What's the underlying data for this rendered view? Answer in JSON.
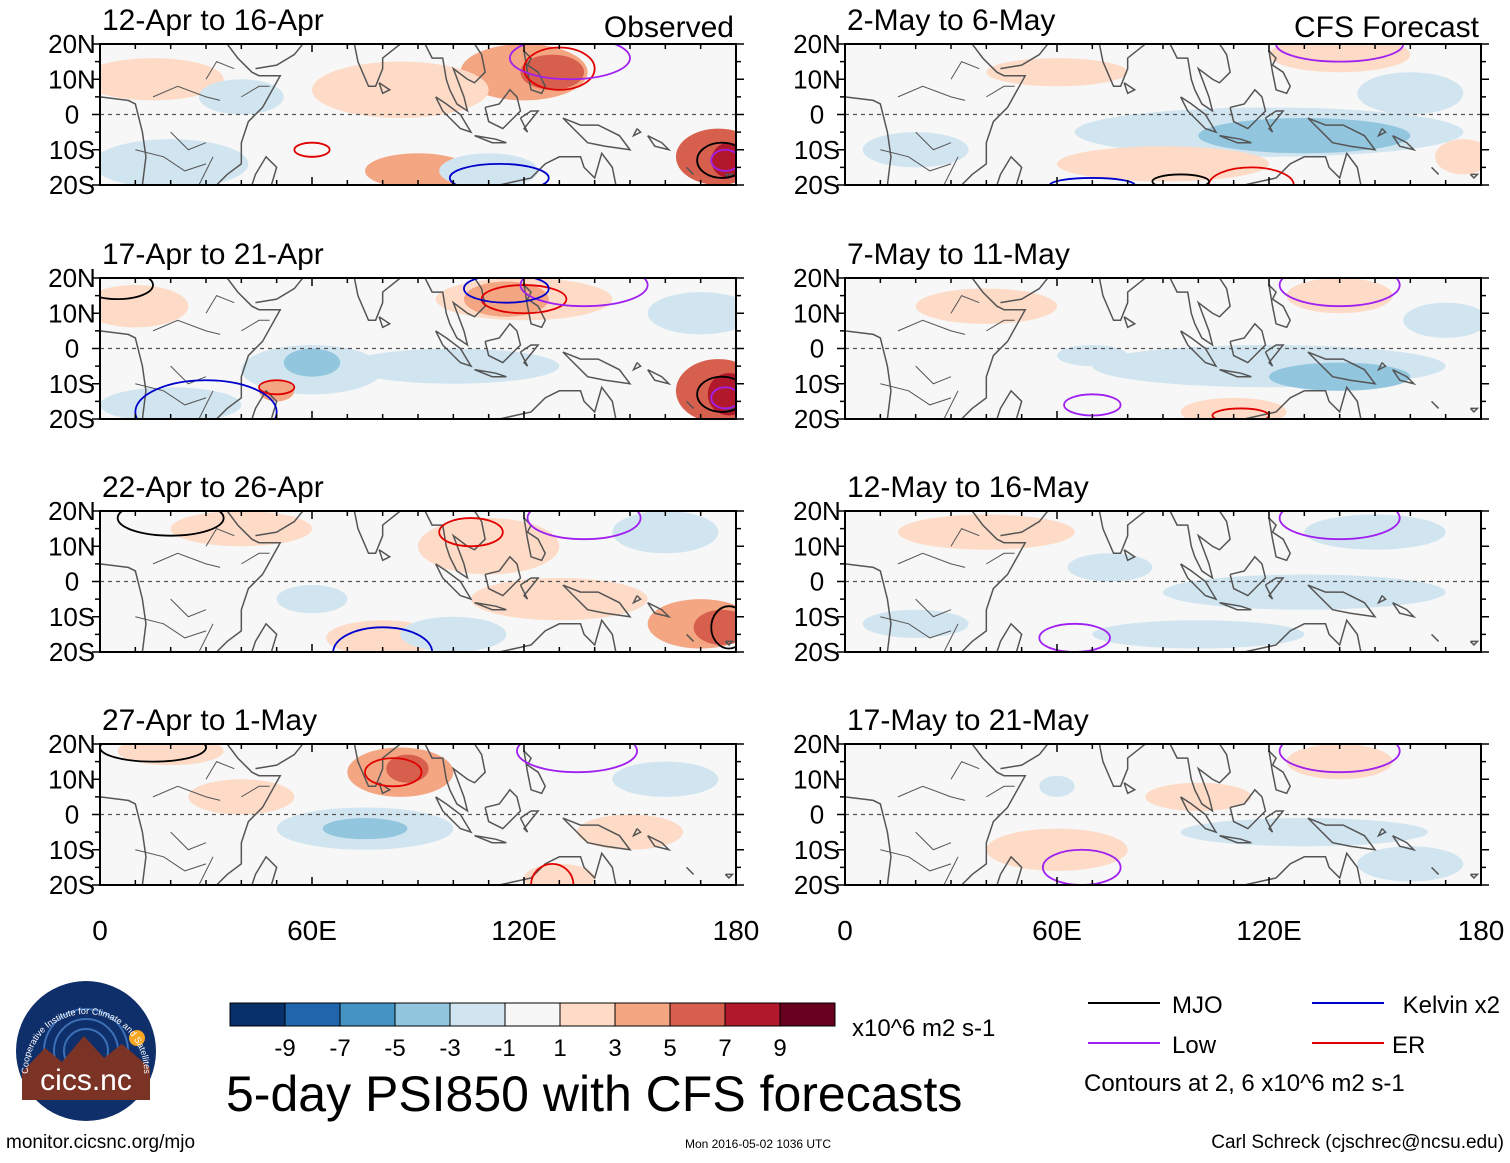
{
  "chart_data": {
    "type": "heatmap",
    "title": "5-day PSI850 with CFS forecasts",
    "variable": "PSI850 anomaly",
    "units": "x10^6 m2 s-1",
    "contour_note": "Contours at 2, 6 x10^6 m2 s-1",
    "lat_labels": [
      "20N",
      "10N",
      "0",
      "10S",
      "20S"
    ],
    "lon_labels": [
      "0",
      "60E",
      "120E",
      "180"
    ],
    "lat_range": [
      -20,
      20
    ],
    "lon_range": [
      0,
      180
    ],
    "colorbar": {
      "ticks": [
        "-9",
        "-7",
        "-5",
        "-3",
        "-1",
        "1",
        "3",
        "5",
        "7",
        "9"
      ],
      "colors": [
        "#08306b",
        "#2166ac",
        "#4393c3",
        "#92c5de",
        "#d1e5f0",
        "#f7f7f7",
        "#fddbc7",
        "#f4a582",
        "#d6604d",
        "#b2182b",
        "#67001f"
      ]
    },
    "legend": [
      {
        "label": "MJO",
        "color": "#000000"
      },
      {
        "label": "Low",
        "color": "#a020f0"
      },
      {
        "label": "Kelvin x2",
        "color": "#0000cc"
      },
      {
        "label": "ER",
        "color": "#e00000"
      }
    ],
    "columns": [
      {
        "tag": "Observed",
        "panels": [
          {
            "title": "12-Apr to 16-Apr",
            "blobs": [
              {
                "lon": 120,
                "lat": 12,
                "rx": 18,
                "ry": 8,
                "level": 2
              },
              {
                "lon": 128,
                "lat": 12,
                "rx": 9,
                "ry": 5,
                "level": 3
              },
              {
                "lon": 175,
                "lat": -12,
                "rx": 12,
                "ry": 8,
                "level": 3
              },
              {
                "lon": 178,
                "lat": -13,
                "rx": 5,
                "ry": 5,
                "level": 4
              },
              {
                "lon": 85,
                "lat": 7,
                "rx": 25,
                "ry": 8,
                "level": 1
              },
              {
                "lon": 90,
                "lat": -16,
                "rx": 15,
                "ry": 5,
                "level": 2
              },
              {
                "lon": 15,
                "lat": 10,
                "rx": 20,
                "ry": 6,
                "level": 1
              },
              {
                "lon": 20,
                "lat": -14,
                "rx": 22,
                "ry": 7,
                "level": -1
              },
              {
                "lon": 40,
                "lat": 5,
                "rx": 12,
                "ry": 5,
                "level": -1
              },
              {
                "lon": 110,
                "lat": -16,
                "rx": 14,
                "ry": 5,
                "level": -1
              }
            ],
            "contours": [
              {
                "lon": 130,
                "lat": 13,
                "rx": 10,
                "ry": 6,
                "kind": "er"
              },
              {
                "lon": 133,
                "lat": 16,
                "rx": 17,
                "ry": 6,
                "kind": "low"
              },
              {
                "lon": 60,
                "lat": -10,
                "rx": 5,
                "ry": 2,
                "kind": "er"
              },
              {
                "lon": 113,
                "lat": -18,
                "rx": 14,
                "ry": 4,
                "kind": "kelvin"
              },
              {
                "lon": 176,
                "lat": -13,
                "rx": 7,
                "ry": 5,
                "kind": "mjo"
              },
              {
                "lon": 177,
                "lat": -13,
                "rx": 4,
                "ry": 3,
                "kind": "low"
              }
            ]
          },
          {
            "title": "17-Apr to 21-Apr",
            "blobs": [
              {
                "lon": 120,
                "lat": 14,
                "rx": 25,
                "ry": 6,
                "level": 1
              },
              {
                "lon": 115,
                "lat": 14,
                "rx": 12,
                "ry": 5,
                "level": 2
              },
              {
                "lon": 175,
                "lat": -12,
                "rx": 12,
                "ry": 9,
                "level": 3
              },
              {
                "lon": 178,
                "lat": -13,
                "rx": 6,
                "ry": 6,
                "level": 4
              },
              {
                "lon": 60,
                "lat": -6,
                "rx": 20,
                "ry": 7,
                "level": -1
              },
              {
                "lon": 60,
                "lat": -4,
                "rx": 8,
                "ry": 4,
                "level": -2
              },
              {
                "lon": 100,
                "lat": -5,
                "rx": 30,
                "ry": 5,
                "level": -1
              },
              {
                "lon": 170,
                "lat": 10,
                "rx": 15,
                "ry": 6,
                "level": -1
              },
              {
                "lon": 50,
                "lat": -12,
                "rx": 5,
                "ry": 3,
                "level": 2
              },
              {
                "lon": 20,
                "lat": -16,
                "rx": 20,
                "ry": 5,
                "level": -1
              },
              {
                "lon": 10,
                "lat": 12,
                "rx": 15,
                "ry": 6,
                "level": 1
              }
            ],
            "contours": [
              {
                "lon": 120,
                "lat": 14,
                "rx": 12,
                "ry": 4,
                "kind": "er"
              },
              {
                "lon": 137,
                "lat": 18,
                "rx": 18,
                "ry": 6,
                "kind": "low"
              },
              {
                "lon": 115,
                "lat": 17,
                "rx": 12,
                "ry": 4,
                "kind": "kelvin"
              },
              {
                "lon": 50,
                "lat": -11,
                "rx": 5,
                "ry": 2,
                "kind": "er"
              },
              {
                "lon": 30,
                "lat": -18,
                "rx": 20,
                "ry": 9,
                "kind": "kelvin"
              },
              {
                "lon": 176,
                "lat": -13,
                "rx": 7,
                "ry": 5,
                "kind": "mjo"
              },
              {
                "lon": 177,
                "lat": -14,
                "rx": 4,
                "ry": 3,
                "kind": "low"
              },
              {
                "lon": 5,
                "lat": 18,
                "rx": 10,
                "ry": 4,
                "kind": "mjo"
              }
            ]
          },
          {
            "title": "22-Apr to 26-Apr",
            "blobs": [
              {
                "lon": 110,
                "lat": 10,
                "rx": 20,
                "ry": 8,
                "level": 1
              },
              {
                "lon": 130,
                "lat": -5,
                "rx": 25,
                "ry": 6,
                "level": 1
              },
              {
                "lon": 170,
                "lat": -12,
                "rx": 15,
                "ry": 7,
                "level": 2
              },
              {
                "lon": 176,
                "lat": -13,
                "rx": 8,
                "ry": 5,
                "level": 3
              },
              {
                "lon": 80,
                "lat": -16,
                "rx": 16,
                "ry": 5,
                "level": 1
              },
              {
                "lon": 40,
                "lat": 15,
                "rx": 20,
                "ry": 5,
                "level": 1
              },
              {
                "lon": 100,
                "lat": -15,
                "rx": 15,
                "ry": 5,
                "level": -1
              },
              {
                "lon": 160,
                "lat": 14,
                "rx": 15,
                "ry": 6,
                "level": -1
              },
              {
                "lon": 60,
                "lat": -5,
                "rx": 10,
                "ry": 4,
                "level": -1
              }
            ],
            "contours": [
              {
                "lon": 105,
                "lat": 14,
                "rx": 9,
                "ry": 4,
                "kind": "er"
              },
              {
                "lon": 137,
                "lat": 18,
                "rx": 16,
                "ry": 6,
                "kind": "low"
              },
              {
                "lon": 80,
                "lat": -20,
                "rx": 14,
                "ry": 7,
                "kind": "kelvin"
              },
              {
                "lon": 178,
                "lat": -13,
                "rx": 5,
                "ry": 6,
                "kind": "mjo"
              },
              {
                "lon": 20,
                "lat": 18,
                "rx": 15,
                "ry": 5,
                "kind": "mjo"
              }
            ]
          },
          {
            "title": "27-Apr to 1-May",
            "blobs": [
              {
                "lon": 85,
                "lat": 12,
                "rx": 15,
                "ry": 7,
                "level": 2
              },
              {
                "lon": 87,
                "lat": 13,
                "rx": 6,
                "ry": 4,
                "level": 3
              },
              {
                "lon": 75,
                "lat": -4,
                "rx": 25,
                "ry": 6,
                "level": -1
              },
              {
                "lon": 75,
                "lat": -4,
                "rx": 12,
                "ry": 3,
                "level": -2
              },
              {
                "lon": 130,
                "lat": -18,
                "rx": 10,
                "ry": 4,
                "level": 1
              },
              {
                "lon": 150,
                "lat": -5,
                "rx": 15,
                "ry": 5,
                "level": 1
              },
              {
                "lon": 20,
                "lat": 18,
                "rx": 15,
                "ry": 4,
                "level": 1
              },
              {
                "lon": 160,
                "lat": 10,
                "rx": 15,
                "ry": 5,
                "level": -1
              },
              {
                "lon": 40,
                "lat": 5,
                "rx": 15,
                "ry": 5,
                "level": 1
              }
            ],
            "contours": [
              {
                "lon": 83,
                "lat": 12,
                "rx": 8,
                "ry": 4,
                "kind": "er"
              },
              {
                "lon": 135,
                "lat": 18,
                "rx": 17,
                "ry": 6,
                "kind": "low"
              },
              {
                "lon": 128,
                "lat": -20,
                "rx": 6,
                "ry": 6,
                "kind": "er"
              },
              {
                "lon": 15,
                "lat": 19,
                "rx": 15,
                "ry": 4,
                "kind": "mjo"
              }
            ]
          }
        ]
      },
      {
        "tag": "CFS Forecast",
        "panels": [
          {
            "title": "2-May to 6-May",
            "blobs": [
              {
                "lon": 120,
                "lat": -5,
                "rx": 55,
                "ry": 7,
                "level": -1
              },
              {
                "lon": 130,
                "lat": -6,
                "rx": 30,
                "ry": 5,
                "level": -2
              },
              {
                "lon": 160,
                "lat": 6,
                "rx": 15,
                "ry": 6,
                "level": -1
              },
              {
                "lon": 140,
                "lat": 17,
                "rx": 20,
                "ry": 5,
                "level": 1
              },
              {
                "lon": 90,
                "lat": -14,
                "rx": 30,
                "ry": 5,
                "level": 1
              },
              {
                "lon": 60,
                "lat": 12,
                "rx": 20,
                "ry": 4,
                "level": 1
              },
              {
                "lon": 20,
                "lat": -10,
                "rx": 15,
                "ry": 5,
                "level": -1
              },
              {
                "lon": 175,
                "lat": -12,
                "rx": 8,
                "ry": 5,
                "level": 1
              }
            ],
            "contours": [
              {
                "lon": 140,
                "lat": 20,
                "rx": 18,
                "ry": 5,
                "kind": "low"
              },
              {
                "lon": 115,
                "lat": -20,
                "rx": 12,
                "ry": 5,
                "kind": "er"
              },
              {
                "lon": 95,
                "lat": -19,
                "rx": 8,
                "ry": 2,
                "kind": "mjo"
              },
              {
                "lon": 70,
                "lat": -20,
                "rx": 12,
                "ry": 2,
                "kind": "kelvin"
              }
            ]
          },
          {
            "title": "7-May to 11-May",
            "blobs": [
              {
                "lon": 120,
                "lat": -5,
                "rx": 50,
                "ry": 6,
                "level": -1
              },
              {
                "lon": 140,
                "lat": -8,
                "rx": 20,
                "ry": 4,
                "level": -2
              },
              {
                "lon": 70,
                "lat": -2,
                "rx": 10,
                "ry": 3,
                "level": -1
              },
              {
                "lon": 140,
                "lat": 15,
                "rx": 15,
                "ry": 5,
                "level": 1
              },
              {
                "lon": 110,
                "lat": -18,
                "rx": 15,
                "ry": 4,
                "level": 1
              },
              {
                "lon": 170,
                "lat": 8,
                "rx": 12,
                "ry": 5,
                "level": -1
              },
              {
                "lon": 40,
                "lat": 12,
                "rx": 20,
                "ry": 5,
                "level": 1
              }
            ],
            "contours": [
              {
                "lon": 140,
                "lat": 18,
                "rx": 17,
                "ry": 6,
                "kind": "low"
              },
              {
                "lon": 70,
                "lat": -16,
                "rx": 8,
                "ry": 3,
                "kind": "low"
              },
              {
                "lon": 112,
                "lat": -19,
                "rx": 8,
                "ry": 2,
                "kind": "er"
              }
            ]
          },
          {
            "title": "12-May to 16-May",
            "blobs": [
              {
                "lon": 75,
                "lat": 4,
                "rx": 12,
                "ry": 4,
                "level": -1
              },
              {
                "lon": 130,
                "lat": -3,
                "rx": 40,
                "ry": 5,
                "level": -1
              },
              {
                "lon": 150,
                "lat": 14,
                "rx": 20,
                "ry": 5,
                "level": -1
              },
              {
                "lon": 100,
                "lat": -15,
                "rx": 30,
                "ry": 4,
                "level": -1
              },
              {
                "lon": 40,
                "lat": 14,
                "rx": 25,
                "ry": 5,
                "level": 1
              },
              {
                "lon": 20,
                "lat": -12,
                "rx": 15,
                "ry": 4,
                "level": -1
              }
            ],
            "contours": [
              {
                "lon": 140,
                "lat": 18,
                "rx": 17,
                "ry": 6,
                "kind": "low"
              },
              {
                "lon": 65,
                "lat": -16,
                "rx": 10,
                "ry": 4,
                "kind": "low"
              }
            ]
          },
          {
            "title": "17-May to 21-May",
            "blobs": [
              {
                "lon": 60,
                "lat": 8,
                "rx": 5,
                "ry": 3,
                "level": -1
              },
              {
                "lon": 140,
                "lat": 15,
                "rx": 15,
                "ry": 5,
                "level": 1
              },
              {
                "lon": 60,
                "lat": -10,
                "rx": 20,
                "ry": 6,
                "level": 1
              },
              {
                "lon": 130,
                "lat": -5,
                "rx": 35,
                "ry": 4,
                "level": -1
              },
              {
                "lon": 100,
                "lat": 5,
                "rx": 15,
                "ry": 4,
                "level": 1
              },
              {
                "lon": 160,
                "lat": -14,
                "rx": 15,
                "ry": 5,
                "level": -1
              }
            ],
            "contours": [
              {
                "lon": 140,
                "lat": 18,
                "rx": 17,
                "ry": 6,
                "kind": "low"
              },
              {
                "lon": 67,
                "lat": -15,
                "rx": 11,
                "ry": 5,
                "kind": "low"
              }
            ]
          }
        ]
      }
    ]
  },
  "branding": {
    "logo_text": "cics.nc",
    "logo_ring_text": "Cooperative Institute for Climate and Satellites",
    "url": "monitor.cicsnc.org/mjo",
    "timestamp": "Mon 2016-05-02 1036 UTC",
    "credit": "Carl Schreck (cjschrec@ncsu.edu)"
  }
}
